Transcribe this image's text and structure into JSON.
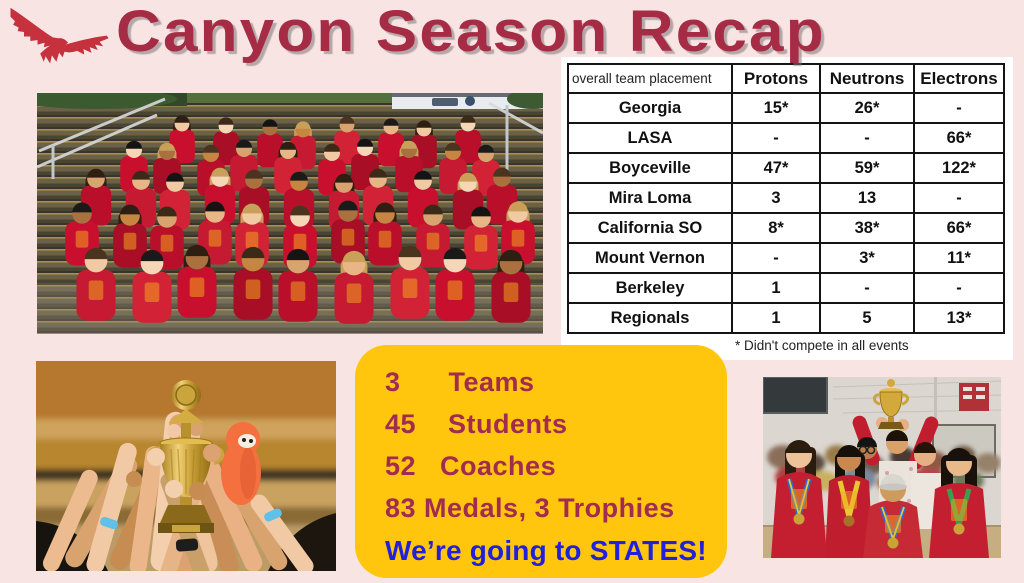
{
  "slide": {
    "title": "Canyon Season Recap"
  },
  "icons": {
    "eagle": "soaring-eagle-silhouette"
  },
  "table": {
    "header": [
      "overall team placement",
      "Protons",
      "Neutrons",
      "Electrons"
    ],
    "rows": [
      [
        "Georgia",
        "15*",
        "26*",
        "-"
      ],
      [
        "LASA",
        "-",
        "-",
        "66*"
      ],
      [
        "Boyceville",
        "47*",
        "59*",
        "122*"
      ],
      [
        "Mira Loma",
        "3",
        "13",
        "-"
      ],
      [
        "California SO",
        "8*",
        "38*",
        "66*"
      ],
      [
        "Mount Vernon",
        "-",
        "3*",
        "11*"
      ],
      [
        "Berkeley",
        "1",
        "-",
        "-"
      ],
      [
        "Regionals",
        "1",
        "5",
        "13*"
      ]
    ],
    "footnote": "* Didn't compete in all events"
  },
  "stats": {
    "lines": [
      "3      Teams",
      "45    Students",
      "52   Coaches",
      "83 Medals, 3 Trophies"
    ],
    "highlight": "We’re going to STATES!"
  },
  "colors": {
    "background": "#f8e5e3",
    "title_maroon": "#a62b45",
    "eagle_red": "#c5323e",
    "box_yellow": "#ffc60d",
    "stat_maroon": "#a22c50",
    "states_blue": "#2121dc",
    "table_border": "#141414"
  }
}
